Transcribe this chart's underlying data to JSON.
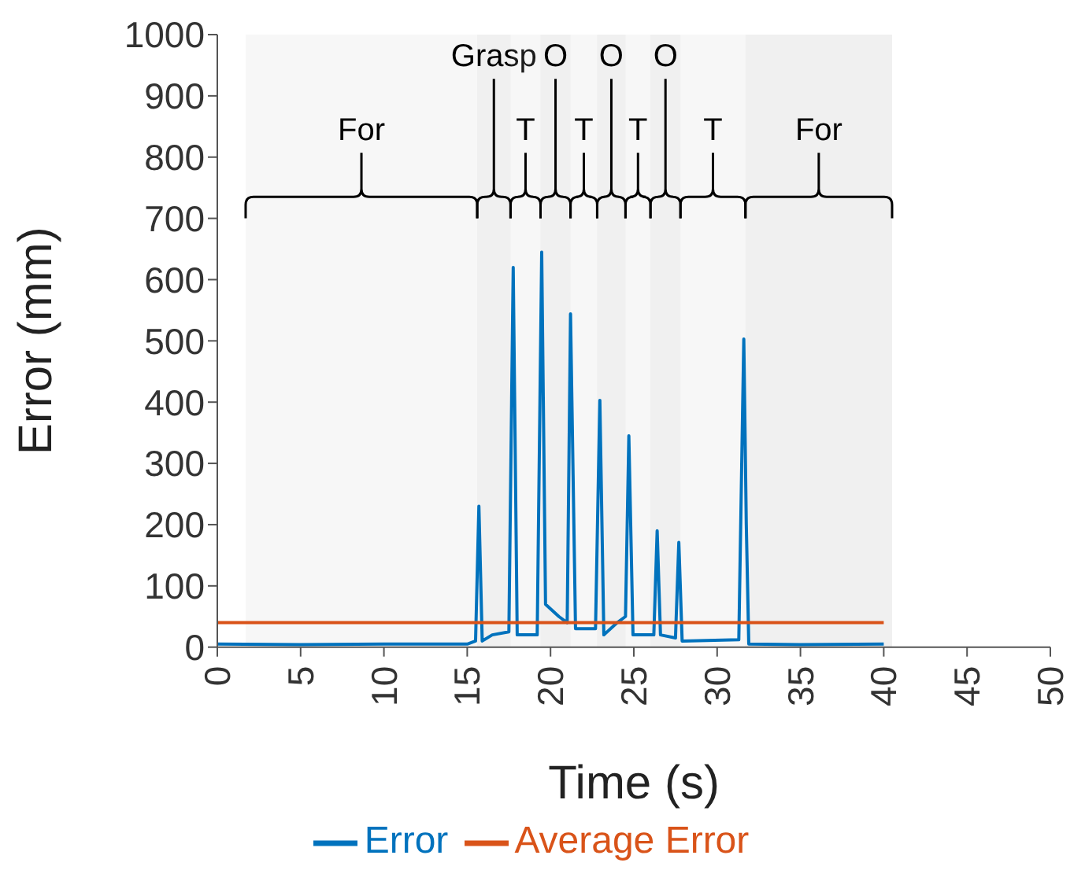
{
  "chart_data": {
    "type": "line",
    "xlabel": "Time (s)",
    "ylabel": "Error (mm)",
    "xlim": [
      0,
      50
    ],
    "xticks": [
      0,
      5,
      10,
      15,
      20,
      25,
      30,
      35,
      40,
      45,
      50
    ],
    "ylim": [
      0,
      1000
    ],
    "yticks": [
      0,
      100,
      200,
      300,
      400,
      500,
      600,
      700,
      800,
      900,
      1000
    ],
    "grid": false,
    "legend": "bottom",
    "marker": "none",
    "line_style": "solid",
    "series": [
      {
        "name": "Error",
        "color": "#0072bd",
        "x": [
          0,
          5,
          10,
          15,
          15.5,
          15.7,
          15.9,
          16.5,
          17.5,
          17.76,
          18.0,
          19.2,
          19.47,
          19.7,
          20.5,
          21.0,
          21.2,
          21.5,
          22.7,
          22.96,
          23.2,
          24.0,
          24.5,
          24.7,
          24.95,
          26.2,
          26.4,
          26.6,
          27.5,
          27.7,
          27.9,
          31.3,
          31.6,
          31.75,
          31.9,
          35,
          40
        ],
        "values": [
          5,
          4,
          5,
          5,
          10,
          230,
          10,
          20,
          25,
          620,
          20,
          20,
          645,
          70,
          50,
          40,
          544,
          30,
          30,
          403,
          20,
          40,
          50,
          345,
          20,
          20,
          190,
          20,
          15,
          171,
          10,
          12,
          503,
          200,
          5,
          4,
          5
        ]
      },
      {
        "name": "Average Error",
        "color": "#d95319",
        "x": [
          0,
          40
        ],
        "values": [
          40,
          40
        ]
      }
    ],
    "bands": [
      {
        "axis": "x",
        "from": 1.7,
        "to": 15.6,
        "label": "For"
      },
      {
        "axis": "x",
        "from": 15.6,
        "to": 17.6,
        "label": "Grasp"
      },
      {
        "axis": "x",
        "from": 17.6,
        "to": 19.4,
        "label": "T"
      },
      {
        "axis": "x",
        "from": 19.4,
        "to": 21.2,
        "label": "O"
      },
      {
        "axis": "x",
        "from": 21.2,
        "to": 22.8,
        "label": "T"
      },
      {
        "axis": "x",
        "from": 22.8,
        "to": 24.5,
        "label": "O"
      },
      {
        "axis": "x",
        "from": 24.5,
        "to": 26.0,
        "label": "T"
      },
      {
        "axis": "x",
        "from": 26.0,
        "to": 27.8,
        "label": "O"
      },
      {
        "axis": "x",
        "from": 27.8,
        "to": 31.7,
        "label": "T"
      },
      {
        "axis": "x",
        "from": 31.7,
        "to": 40.5,
        "label": "For"
      }
    ]
  }
}
